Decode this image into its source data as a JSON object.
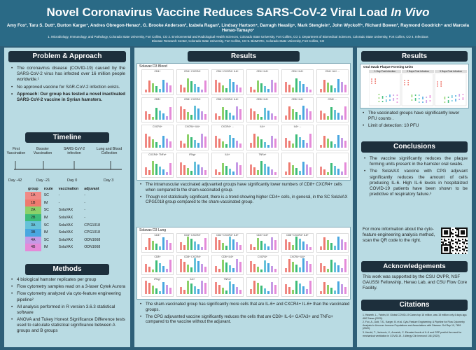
{
  "header": {
    "title_main": "Novel Coronavirus Vaccine Reduces SARS-CoV-2 Viral Load ",
    "title_italic": "In Vivo",
    "authors": "Amy Fox¹, Taru S. Dutt¹, Burton Karger¹, Andres Obregon-Henao¹, G. Brooke Anderson², Izabela Ragan³, Lindsay Hartson⁴, Darragh Heaslip⁵, Mark Stenglein¹, John Wyckoff⁴, Richard Bowen³, Raymond Goodrich⁴ and Marcela Henao-Tamayo¹",
    "affiliations": "1. Microbiology, Immunology, and Pathology, Colorado State University, Fort Collins, CO 2. Environmental and Radiological Health Sciences, Colorado State University, Fort Collins, CO 3. Department of Biomedical Sciences, Colorado State University, Fort Collins, CO 4. Infectious Disease Research Center, Colorado State University, Fort Collins, CO 5. BioMARC, Colorado State University, Fort Collins, CO"
  },
  "problem": {
    "title": "Problem & Approach",
    "bullets": [
      "The coronavirus disease (COVID-19) caused by the SARS-CoV-2 virus has infected over 16 million people worldwide.¹",
      "No approved vaccine for SAR-CoV-2 infection exists.",
      "Approach: Our group has tested a novel inactivated SARS-CoV-2 vaccine in Syrian hamsters."
    ]
  },
  "timeline": {
    "title": "Timeline",
    "events": [
      "First Vaccination",
      "Booster Vaccination",
      "SARS-CoV-2 infection",
      "Lung and Blood Collection"
    ],
    "days": [
      "Day -42",
      "Day -21",
      "Day 0",
      "Day 3"
    ],
    "table": {
      "headers": [
        "group",
        "route",
        "vaccination",
        "adjuvant"
      ],
      "rows": [
        {
          "group": "1A",
          "route": "SC",
          "vaccination": "-",
          "adjuvant": "-",
          "color": "#f08a86"
        },
        {
          "group": "1B",
          "route": "IM",
          "vaccination": "-",
          "adjuvant": "-",
          "color": "#ee7a6f"
        },
        {
          "group": "2A",
          "route": "SC",
          "vaccination": "SolaVAX",
          "adjuvant": "-",
          "color": "#8cd16a"
        },
        {
          "group": "2B",
          "route": "IM",
          "vaccination": "SolaVAX",
          "adjuvant": "-",
          "color": "#3dbc79"
        },
        {
          "group": "3A",
          "route": "SC",
          "vaccination": "SolaVAX",
          "adjuvant": "CPG1018",
          "color": "#66c2d9"
        },
        {
          "group": "3B",
          "route": "IM",
          "vaccination": "SolaVAX",
          "adjuvant": "CPG1018",
          "color": "#49a7e0"
        },
        {
          "group": "4A",
          "route": "SC",
          "vaccination": "SolaVAX",
          "adjuvant": "ODN1668",
          "color": "#c59ae6"
        },
        {
          "group": "4B",
          "route": "IM",
          "vaccination": "SolaVAX",
          "adjuvant": "ODN1668",
          "color": "#e58ad8"
        }
      ]
    }
  },
  "methods": {
    "title": "Methods",
    "bullets": [
      "4 biological hamster replicates per group",
      "Flow cytometry samples read on a 3-laser Cytek Aurora",
      "Flow cytometry analyzed via cyto-feature engineering pipeline²",
      "All analysis performed in R version 3.6.3 statistical software",
      "ANOVA and Tukey Honest Significance Difference tests used to calculate statistical significance between A groups and B groups"
    ]
  },
  "results_mid": {
    "title": "Results",
    "blood_label": "Solavax D3 Blood",
    "lung_label": "Solavax D3 Lung",
    "blood_bullets": [
      "The intramuscular vaccinated adjuvanted groups have significantly lower numbers of CD8+ CXCR4+ cells when compared to the sham-vaccinated group.",
      "Though not statistically significant, there is a trend showing higher CD4+ cells, in general, in the SC SolaVAX CPG1018 group compared to the sham-vaccinated group."
    ],
    "lung_bullets": [
      "The sham-vaccinated group has significantly more cells that are IL-6+ and CXCR4+ IL-6+ than the vaccinated groups.",
      "The CPG adjuvanted vaccine significantly reduces the cells that are CD8+ IL-6+ GATA3+ and TNFα+ compared to the vaccine without the adjuvant."
    ],
    "blood_panels": [
      "CD4+",
      "CD4+ CXCR4+",
      "CD4+ CXCR4+ IL6+",
      "CD4+ IL6+",
      "CD4+ IL6+",
      "CD4+ IL6+ ...",
      "CD8+",
      "CD8+ CXCR4+",
      "CD8+ CXCR4+ IL6+",
      "CD8+ IL6+",
      "CD8+ IL6+",
      "CD8+ ...",
      "CXCR4+",
      "CXCR4+ IL6+",
      "CXCR4+ ...",
      "IL6+",
      "IL6+ ...",
      "",
      "CXCR4+ TNFa+",
      "IFNg+",
      "IL6+",
      "TNFa+",
      "",
      ""
    ],
    "lung_panels": [
      "CD4+",
      "CD4+ CXCR4+",
      "CD4+ CXCR4+ IL6+",
      "CD4+ IL6+",
      "CD8+ CXCR4+ IL6+",
      "",
      "CD8+",
      "CD8+ CXCR4+",
      "CD8+ IL6+",
      "CXCR4+",
      "CXCR4+ IL6+",
      "",
      "IFNg+",
      "IL6+",
      "TNFa+",
      "",
      "",
      ""
    ]
  },
  "results_right": {
    "title": "Results",
    "chart_title": "Oral Swab Plaque Forming Units",
    "facets": [
      "1 Day Post Infection",
      "2 Days Post Infection",
      "3 Days Post Infection"
    ],
    "bullets": [
      "The vaccinated groups have significantly lower PFU counts .",
      "Limit of detection: 10 PFU"
    ]
  },
  "conclusions": {
    "title": "Conclusions",
    "bullets": [
      "The vaccine significantly reduces the plaque forming units present in the hamster oral swabs.",
      "The SolaVAX vaccine with CPG adjuvant significantly reduces the amount of cells producing IL-6. High IL-6 levels in hospitalized COVID-19 patients have been shown to be predictive of respiratory failure.³"
    ]
  },
  "qr_info": {
    "text": "For more information about the cyto-feature engineering analysis method, scan the QR code to the right."
  },
  "acknowledgements": {
    "title": "Acknowledgements",
    "text": "This work was supported by the CSU OVPR, NSF GAUSSI Fellowship, Henao Lab, and CSU Flow Core Facility."
  },
  "citations": {
    "title": "Citations",
    "items": [
      "1. Haseeb, L., Fahim, M. Global COVID-19 Cases top 16 million, was 15 million only 4 days ago. ABC News (2020).",
      "2. Fox, A., Dutt, T.S., Karger, B. et al. Cyto-Feature Engineering: A Pipeline for Flow Cytometry Analysis to Uncover Immune Populations and Associations with Disease. Sci Rep 10, 7651 (2020).",
      "3. Herold, T., Jurinovic, V., Arnreich, C. Elevated levels of IL-6 and CRP predict the need for mechanical ventilation in COVID-19. J Allergy Clin Immunol 146 (2020)."
    ]
  },
  "colors": {
    "background": "#2e5f78",
    "panel": "#b9dbe3",
    "title_bar": "#1d2f3c"
  }
}
